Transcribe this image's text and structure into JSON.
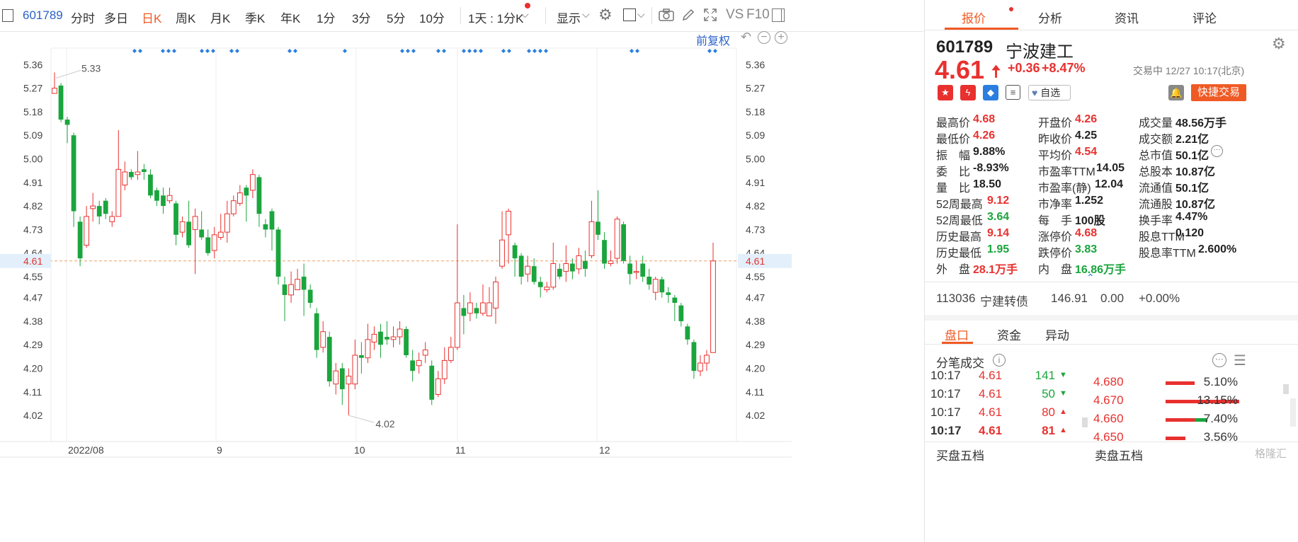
{
  "toolbar": {
    "code": "601789",
    "periods": [
      "分时",
      "多日",
      "日K",
      "周K",
      "月K",
      "季K",
      "年K",
      "1分",
      "3分",
      "5分",
      "10分"
    ],
    "active_period": "日K",
    "interval_select": "1天 : 1分K",
    "display_label": "显示",
    "vs_label": "VS",
    "f10_label": "F10"
  },
  "chart": {
    "adjust_label": "前复权",
    "current_price_label": "4.61",
    "high_marker": "5.33",
    "low_marker": "4.02",
    "y_ticks": [
      "5.36",
      "5.27",
      "5.18",
      "5.09",
      "5.00",
      "4.91",
      "4.82",
      "4.73",
      "4.64",
      "4.55",
      "4.47",
      "4.38",
      "4.29",
      "4.20",
      "4.11",
      "4.02"
    ],
    "x_labels": [
      "2022/08",
      "9",
      "10",
      "11",
      "12"
    ],
    "accent_color": "#f05a24",
    "up_color": "#e8312f",
    "down_color": "#1aa53d"
  },
  "chart_data": {
    "type": "candlestick",
    "ylim": [
      3.97,
      5.4
    ],
    "y_ticks": [
      5.36,
      5.27,
      5.18,
      5.09,
      5.0,
      4.91,
      4.82,
      4.73,
      4.64,
      4.55,
      4.47,
      4.38,
      4.29,
      4.2,
      4.11,
      4.02
    ],
    "x_labels": [
      "2022/08",
      "9",
      "10",
      "11",
      "12"
    ],
    "last_price": 4.61,
    "high": 5.33,
    "low": 4.02,
    "candles": [
      [
        5.25,
        5.27,
        5.33,
        5.25
      ],
      [
        5.28,
        5.15,
        5.29,
        5.14
      ],
      [
        5.15,
        5.13,
        5.16,
        5.06
      ],
      [
        5.09,
        4.8,
        5.1,
        4.74
      ],
      [
        4.76,
        4.62,
        4.78,
        4.59
      ],
      [
        4.67,
        4.78,
        4.82,
        4.66
      ],
      [
        4.81,
        4.82,
        4.87,
        4.76
      ],
      [
        4.82,
        4.78,
        4.84,
        4.75
      ],
      [
        4.84,
        4.79,
        4.85,
        4.77
      ],
      [
        4.76,
        4.78,
        4.8,
        4.74
      ],
      [
        4.78,
        4.96,
        5.11,
        4.78
      ],
      [
        4.9,
        4.95,
        4.99,
        4.88
      ],
      [
        4.95,
        4.93,
        4.96,
        4.92
      ],
      [
        4.94,
        4.95,
        5.03,
        4.92
      ],
      [
        4.96,
        4.95,
        4.98,
        4.92
      ],
      [
        4.94,
        4.86,
        4.96,
        4.85
      ],
      [
        4.88,
        4.84,
        4.89,
        4.82
      ],
      [
        4.86,
        4.82,
        4.89,
        4.79
      ],
      [
        4.84,
        4.86,
        4.89,
        4.83
      ],
      [
        4.83,
        4.71,
        4.84,
        4.67
      ],
      [
        4.72,
        4.76,
        4.78,
        4.7
      ],
      [
        4.76,
        4.67,
        4.84,
        4.66
      ],
      [
        4.73,
        4.78,
        4.81,
        4.56
      ],
      [
        4.73,
        4.7,
        4.8,
        4.69
      ],
      [
        4.7,
        4.64,
        4.73,
        4.63
      ],
      [
        4.65,
        4.71,
        4.74,
        4.62
      ],
      [
        4.7,
        4.72,
        4.79,
        4.69
      ],
      [
        4.72,
        4.79,
        4.84,
        4.68
      ],
      [
        4.79,
        4.84,
        4.86,
        4.78
      ],
      [
        4.83,
        4.87,
        4.9,
        4.82
      ],
      [
        4.89,
        4.86,
        4.9,
        4.76
      ],
      [
        4.88,
        4.94,
        4.96,
        4.85
      ],
      [
        4.93,
        4.79,
        4.94,
        4.74
      ],
      [
        4.75,
        4.73,
        4.77,
        4.7
      ],
      [
        4.8,
        4.73,
        4.81,
        4.65
      ],
      [
        4.73,
        4.55,
        4.74,
        4.52
      ],
      [
        4.52,
        4.48,
        4.55,
        4.38
      ],
      [
        4.48,
        4.52,
        4.57,
        4.45
      ],
      [
        4.5,
        4.54,
        4.58,
        4.5
      ],
      [
        4.55,
        4.5,
        4.6,
        4.4
      ],
      [
        4.5,
        4.45,
        4.52,
        4.43
      ],
      [
        4.41,
        4.27,
        4.43,
        4.24
      ],
      [
        4.28,
        4.34,
        4.38,
        4.26
      ],
      [
        4.32,
        4.15,
        4.34,
        4.13
      ],
      [
        4.14,
        4.19,
        4.22,
        4.1
      ],
      [
        4.2,
        4.12,
        4.22,
        4.06
      ],
      [
        4.14,
        4.17,
        4.2,
        4.02
      ],
      [
        4.14,
        4.25,
        4.31,
        4.12
      ],
      [
        4.25,
        4.24,
        4.3,
        4.18
      ],
      [
        4.24,
        4.31,
        4.37,
        4.22
      ],
      [
        4.3,
        4.33,
        4.36,
        4.27
      ],
      [
        4.34,
        4.29,
        4.37,
        4.24
      ],
      [
        4.32,
        4.31,
        4.38,
        4.29
      ],
      [
        4.31,
        4.32,
        4.36,
        4.28
      ],
      [
        4.32,
        4.35,
        4.38,
        4.29
      ],
      [
        4.35,
        4.25,
        4.36,
        4.24
      ],
      [
        4.23,
        4.19,
        4.27,
        4.15
      ],
      [
        4.21,
        4.23,
        4.26,
        4.18
      ],
      [
        4.25,
        4.27,
        4.3,
        4.22
      ],
      [
        4.21,
        4.08,
        4.23,
        4.06
      ],
      [
        4.1,
        4.16,
        4.19,
        4.09
      ],
      [
        4.16,
        4.23,
        4.28,
        4.14
      ],
      [
        4.23,
        4.28,
        4.32,
        4.22
      ],
      [
        4.28,
        4.45,
        4.75,
        4.27
      ],
      [
        4.43,
        4.4,
        4.48,
        4.33
      ],
      [
        4.41,
        4.45,
        4.49,
        4.38
      ],
      [
        4.43,
        4.41,
        4.45,
        4.39
      ],
      [
        4.41,
        4.45,
        4.52,
        4.4
      ],
      [
        4.4,
        4.45,
        4.51,
        4.4
      ],
      [
        4.43,
        4.53,
        4.55,
        4.37
      ],
      [
        4.59,
        4.69,
        4.8,
        4.58
      ],
      [
        4.71,
        4.8,
        4.81,
        4.6
      ],
      [
        4.67,
        4.62,
        4.68,
        4.55
      ],
      [
        4.63,
        4.55,
        4.64,
        4.52
      ],
      [
        4.56,
        4.59,
        4.63,
        4.53
      ],
      [
        4.59,
        4.53,
        4.62,
        4.52
      ],
      [
        4.53,
        4.51,
        4.55,
        4.47
      ],
      [
        4.5,
        4.51,
        4.53,
        4.49
      ],
      [
        4.51,
        4.6,
        4.68,
        4.5
      ],
      [
        4.58,
        4.55,
        4.6,
        4.54
      ],
      [
        4.57,
        4.6,
        4.67,
        4.53
      ],
      [
        4.6,
        4.57,
        4.62,
        4.54
      ],
      [
        4.58,
        4.63,
        4.66,
        4.56
      ],
      [
        4.61,
        4.58,
        4.65,
        4.55
      ],
      [
        4.63,
        4.76,
        4.84,
        4.62
      ],
      [
        4.76,
        4.71,
        4.88,
        4.69
      ],
      [
        4.69,
        4.6,
        4.72,
        4.58
      ],
      [
        4.6,
        4.61,
        4.65,
        4.59
      ],
      [
        4.62,
        4.77,
        4.78,
        4.6
      ],
      [
        4.75,
        4.61,
        4.76,
        4.6
      ],
      [
        4.6,
        4.56,
        4.63,
        4.52
      ],
      [
        4.57,
        4.57,
        4.61,
        4.54
      ],
      [
        4.6,
        4.55,
        4.63,
        4.53
      ],
      [
        4.55,
        4.52,
        4.58,
        4.5
      ],
      [
        4.49,
        4.54,
        4.55,
        4.46
      ],
      [
        4.54,
        4.49,
        4.55,
        4.47
      ],
      [
        4.49,
        4.48,
        4.51,
        4.45
      ],
      [
        4.47,
        4.45,
        4.48,
        4.38
      ],
      [
        4.44,
        4.38,
        4.45,
        4.36
      ],
      [
        4.36,
        4.31,
        4.37,
        4.29
      ],
      [
        4.3,
        4.19,
        4.31,
        4.16
      ],
      [
        4.19,
        4.22,
        4.25,
        4.17
      ],
      [
        4.22,
        4.25,
        4.27,
        4.19
      ],
      [
        4.26,
        4.61,
        4.68,
        4.26
      ]
    ],
    "marker_groups": [
      {
        "x": 190,
        "n": 2
      },
      {
        "x": 230,
        "n": 3
      },
      {
        "x": 285,
        "n": 3
      },
      {
        "x": 327,
        "n": 2
      },
      {
        "x": 409,
        "n": 2
      },
      {
        "x": 487,
        "n": 1
      },
      {
        "x": 568,
        "n": 3
      },
      {
        "x": 619,
        "n": 2
      },
      {
        "x": 655,
        "n": 4
      },
      {
        "x": 711,
        "n": 2
      },
      {
        "x": 747,
        "n": 4
      },
      {
        "x": 892,
        "n": 2
      },
      {
        "x": 1002,
        "n": 2
      }
    ]
  },
  "panel": {
    "tabs": [
      "报价",
      "分析",
      "资讯",
      "评论"
    ],
    "active_tab": "报价",
    "code": "601789",
    "name": "宁波建工",
    "price": "4.61",
    "change": "+0.36",
    "change_pct": "+8.47%",
    "status": "交易中 12/27 10:17(北京)",
    "watch_label": "自选",
    "trade_button": "快捷交易",
    "stats_col1": [
      {
        "label": "最高价",
        "value": "4.68",
        "color": "red"
      },
      {
        "label": "最低价",
        "value": "4.26",
        "color": "red"
      },
      {
        "label": "振　幅",
        "value": "9.88%",
        "color": "dark"
      },
      {
        "label": "委　比",
        "value": "-8.93%",
        "color": "dark"
      },
      {
        "label": "量　比",
        "value": "18.50",
        "color": "dark"
      },
      {
        "label": "52周最高",
        "value": "9.12",
        "color": "red"
      },
      {
        "label": "52周最低",
        "value": "3.64",
        "color": "green"
      },
      {
        "label": "历史最高",
        "value": "9.14",
        "color": "red"
      },
      {
        "label": "历史最低",
        "value": "1.95",
        "color": "green"
      },
      {
        "label": "外　盘",
        "value": "28.1万手",
        "color": "red"
      }
    ],
    "stats_col2": [
      {
        "label": "开盘价",
        "value": "4.26",
        "color": "red"
      },
      {
        "label": "昨收价",
        "value": "4.25",
        "color": "dark"
      },
      {
        "label": "平均价",
        "value": "4.54",
        "color": "red"
      },
      {
        "label": "市盈率TTM",
        "value": "14.05",
        "color": "dark"
      },
      {
        "label": "市盈率(静)",
        "value": "12.04",
        "color": "dark"
      },
      {
        "label": "市净率",
        "value": "1.252",
        "color": "dark"
      },
      {
        "label": "每　手",
        "value": "100股",
        "color": "dark"
      },
      {
        "label": "涨停价",
        "value": "4.68",
        "color": "red"
      },
      {
        "label": "跌停价",
        "value": "3.83",
        "color": "green"
      },
      {
        "label": "内　盘",
        "value": "16.86万手",
        "color": "green"
      }
    ],
    "stats_col3": [
      {
        "label": "成交量",
        "value": "48.56万手",
        "color": "dark"
      },
      {
        "label": "成交额",
        "value": "2.21亿",
        "color": "dark"
      },
      {
        "label": "总市值",
        "value": "50.1亿",
        "color": "dark"
      },
      {
        "label": "总股本",
        "value": "10.87亿",
        "color": "dark"
      },
      {
        "label": "流通值",
        "value": "50.1亿",
        "color": "dark"
      },
      {
        "label": "流通股",
        "value": "10.87亿",
        "color": "dark"
      },
      {
        "label": "换手率",
        "value": "4.47%",
        "color": "dark"
      },
      {
        "label": "股息TTM",
        "value": "0.120",
        "color": "dark"
      },
      {
        "label": "股息率TTM",
        "value": "2.600%",
        "color": "dark"
      }
    ],
    "bond": {
      "code": "113036",
      "name": "宁建转债",
      "price": "146.91",
      "change": "0.00",
      "pct": "+0.00%"
    },
    "sub_tabs": [
      "盘口",
      "资金",
      "异动"
    ],
    "active_sub_tab": "盘口",
    "ticks_title": "分笔成交",
    "ticks": [
      {
        "time": "10:17",
        "price": "4.61",
        "vol": "141",
        "dir": "down"
      },
      {
        "time": "10:17",
        "price": "4.61",
        "vol": "50",
        "dir": "down"
      },
      {
        "time": "10:17",
        "price": "4.61",
        "vol": "80",
        "dir": "up"
      },
      {
        "time": "10:17",
        "price": "4.61",
        "vol": "81",
        "dir": "up"
      }
    ],
    "orderbook": [
      {
        "price": "4.680",
        "pct": "5.10%",
        "bar": 0.39
      },
      {
        "price": "4.670",
        "pct": "13.15%",
        "bar": 1.0
      },
      {
        "price": "4.660",
        "pct": "7.40%",
        "bar": 0.57
      },
      {
        "price": "4.650",
        "pct": "3.56%",
        "bar": 0.27
      }
    ],
    "buy5_label": "买盘五档",
    "sell5_label": "卖盘五档",
    "watermark": "格隆汇"
  }
}
